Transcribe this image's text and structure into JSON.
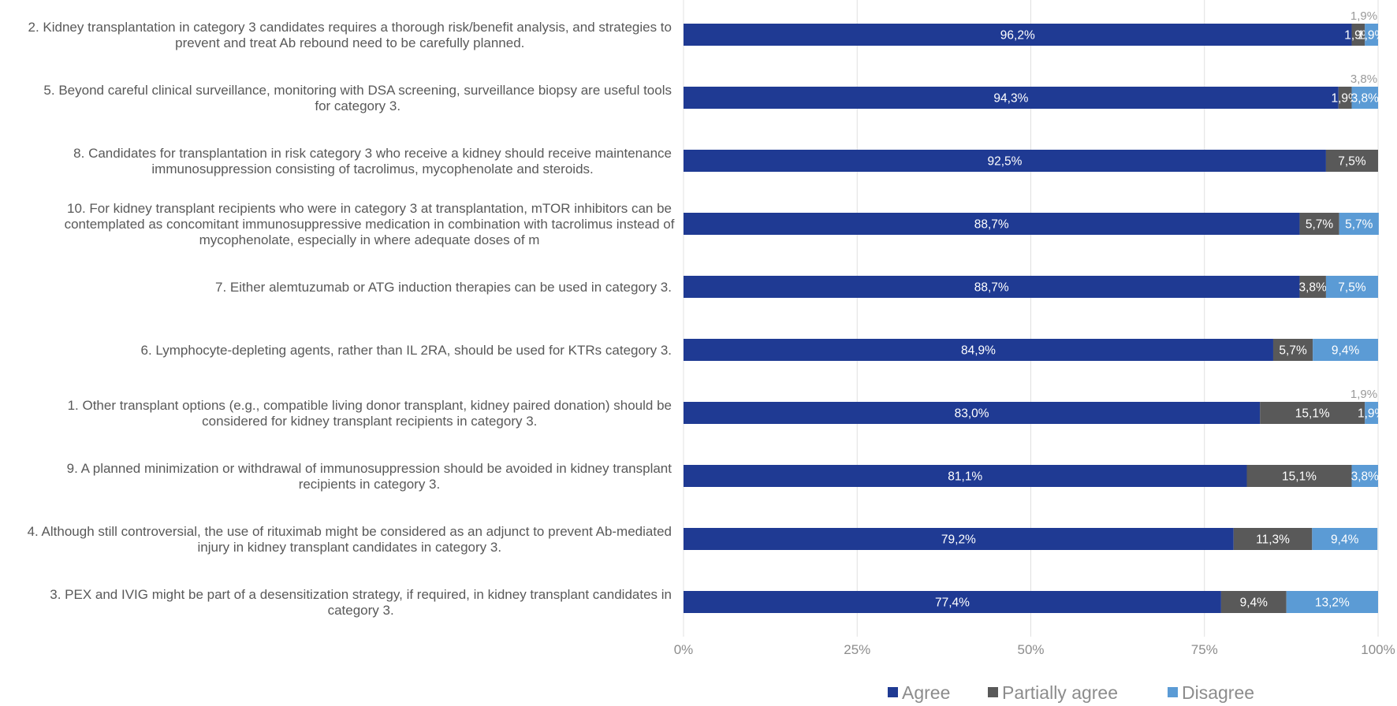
{
  "chart_data": {
    "type": "bar",
    "orientation": "horizontal",
    "stacked": true,
    "categories": [
      [
        "2. Kidney transplantation in category 3 candidates requires a thorough risk/benefit analysis, and strategies to",
        "prevent and treat Ab rebound need to be carefully planned."
      ],
      [
        "5. Beyond careful clinical surveillance, monitoring with DSA screening, surveillance biopsy are useful tools",
        "for category 3."
      ],
      [
        "8. Candidates for transplantation in risk category 3 who receive a kidney should receive maintenance",
        "immunosuppression consisting of tacrolimus, mycophenolate and steroids."
      ],
      [
        "10. For kidney transplant recipients who were in category 3 at transplantation, mTOR inhibitors can be",
        "contemplated as concomitant immunosuppressive medication in combination with tacrolimus instead of",
        "mycophenolate, especially in where adequate doses of m"
      ],
      [
        "7. Either alemtuzumab or ATG induction therapies can be used in category 3."
      ],
      [
        "6. Lymphocyte-depleting agents, rather than IL 2RA, should be used for KTRs category 3."
      ],
      [
        "1. Other transplant options (e.g., compatible living donor transplant, kidney paired donation) should be",
        "considered for kidney transplant recipients in category 3."
      ],
      [
        "9. A planned minimization or withdrawal of immunosuppression should be avoided in kidney transplant",
        "recipients in category 3."
      ],
      [
        "4. Although still controversial, the use of rituximab might be considered as an adjunct to prevent Ab-mediated",
        "injury in kidney transplant candidates in category 3."
      ],
      [
        "3. PEX and IVIG might be part of a desensitization strategy, if required, in kidney transplant candidates in",
        "category 3."
      ]
    ],
    "series": [
      {
        "name": "Agree",
        "color": "#1f3a93",
        "values": [
          96.2,
          94.3,
          92.5,
          88.7,
          88.7,
          84.9,
          83.0,
          81.1,
          79.2,
          77.4
        ],
        "labels": [
          "96,2%",
          "94,3%",
          "92,5%",
          "88,7%",
          "88,7%",
          "84,9%",
          "83,0%",
          "81,1%",
          "79,2%",
          "77,4%"
        ]
      },
      {
        "name": "Partially agree",
        "color": "#595959",
        "values": [
          1.9,
          1.9,
          7.5,
          5.7,
          3.8,
          5.7,
          15.1,
          15.1,
          11.3,
          9.4
        ],
        "labels": [
          "1,9%",
          "1,9%",
          "7,5%",
          "5,7%",
          "3,8%",
          "5,7%",
          "15,1%",
          "15,1%",
          "11,3%",
          "9,4%"
        ]
      },
      {
        "name": "Disagree",
        "color": "#5b9bd5",
        "values": [
          1.9,
          3.8,
          0,
          5.7,
          7.5,
          9.4,
          1.9,
          3.8,
          9.4,
          13.2
        ],
        "labels": [
          "1,9%",
          "3,8%",
          "",
          "5,7%",
          "7,5%",
          "9,4%",
          "1,9%",
          "3,8%",
          "9,4%",
          "13,2%"
        ]
      }
    ],
    "outside_labels": [
      "1,9%",
      "3,8%",
      "",
      "",
      "",
      "",
      "1,9%",
      "",
      "",
      ""
    ],
    "xlim": [
      0,
      100
    ],
    "x_ticks": [
      0,
      25,
      50,
      75,
      100
    ],
    "x_tick_labels": [
      "0%",
      "25%",
      "50%",
      "75%",
      "100%"
    ],
    "grid": true,
    "legend_position": "bottom"
  }
}
